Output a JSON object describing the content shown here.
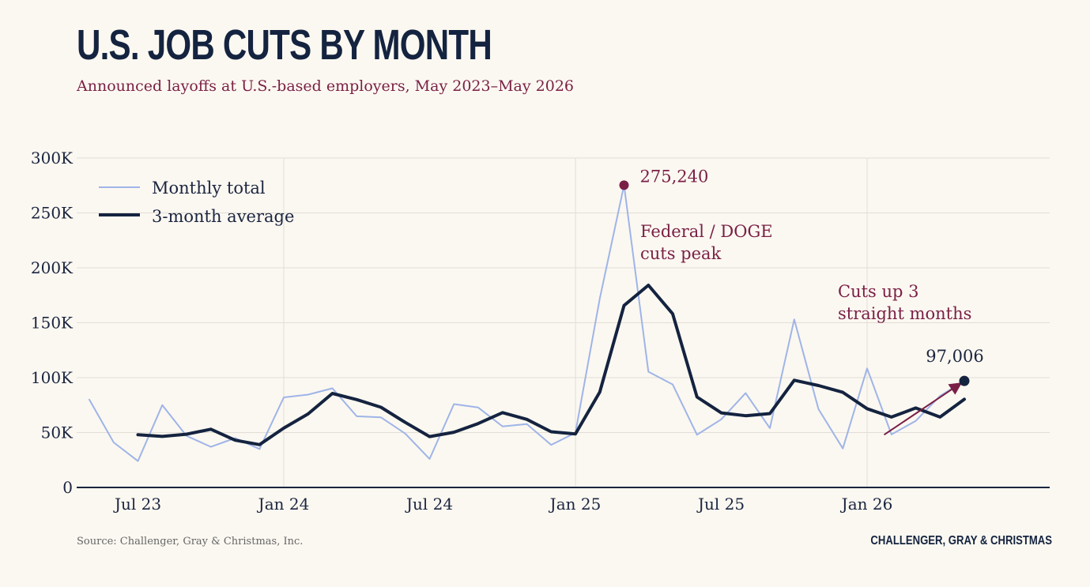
{
  "header": {
    "title": "U.S. JOB CUTS BY MONTH",
    "subtitle": "Announced layoffs at U.S.-based employers, May 2023–May 2026"
  },
  "footer": {
    "source": "Source: Challenger, Gray & Christmas, Inc.",
    "brand": "CHALLENGER, GRAY & CHRISTMAS"
  },
  "colors": {
    "monthly": "#9fb4e8",
    "average": "#14233f",
    "accent": "#7a1f45",
    "grid": "#e2ded6",
    "axis": "#1b2540"
  },
  "chart_data": {
    "type": "line",
    "ylim": [
      0,
      300000
    ],
    "yticks": [
      0,
      50000,
      100000,
      150000,
      200000,
      250000,
      300000
    ],
    "ytick_labels": [
      "0",
      "50K",
      "100K",
      "150K",
      "200K",
      "250K",
      "300K"
    ],
    "xticks": [
      "2023-07",
      "2024-01",
      "2024-07",
      "2025-01",
      "2025-07",
      "2026-01"
    ],
    "xtick_labels": [
      "Jul 23",
      "Jan 24",
      "Jul 24",
      "Jan 25",
      "Jul 25",
      "Jan 26"
    ],
    "vertical_gridlines_at": [
      "2024-01",
      "2025-01",
      "2026-01"
    ],
    "legend_placement": "top-left",
    "x": [
      "2023-05",
      "2023-06",
      "2023-07",
      "2023-08",
      "2023-09",
      "2023-10",
      "2023-11",
      "2023-12",
      "2024-01",
      "2024-02",
      "2024-03",
      "2024-04",
      "2024-05",
      "2024-06",
      "2024-07",
      "2024-08",
      "2024-09",
      "2024-10",
      "2024-11",
      "2024-12",
      "2025-01",
      "2025-02",
      "2025-03",
      "2025-04",
      "2025-05",
      "2025-06",
      "2025-07",
      "2025-08",
      "2025-09",
      "2025-10",
      "2025-11",
      "2025-12",
      "2026-01",
      "2026-02",
      "2026-03",
      "2026-04",
      "2026-05"
    ],
    "series": [
      {
        "name": "Monthly total",
        "values": [
          80000,
          41000,
          24000,
          75000,
          47000,
          37000,
          45000,
          35000,
          82000,
          84500,
          90300,
          64800,
          63800,
          49000,
          26000,
          75900,
          72800,
          55600,
          57700,
          38800,
          49800,
          172000,
          275240,
          105400,
          93800,
          48000,
          62000,
          85900,
          54000,
          153000,
          71300,
          35500,
          108400,
          48300,
          60600,
          83400,
          97006
        ]
      },
      {
        "name": "3-month average",
        "values": [
          null,
          null,
          48000,
          46500,
          48500,
          53000,
          43000,
          39000,
          54000,
          67000,
          85600,
          80000,
          73000,
          59200,
          46300,
          50300,
          58200,
          68100,
          62000,
          50700,
          48800,
          86900,
          165700,
          184200,
          158100,
          82400,
          67900,
          65300,
          67300,
          97600,
          92800,
          86600,
          71700,
          64100,
          72400,
          64100,
          80300
        ]
      }
    ],
    "annotations": [
      {
        "label": "275,240",
        "x": "2025-03",
        "y": 275240
      },
      {
        "label_lines": [
          "Federal / DOGE",
          "cuts peak"
        ]
      },
      {
        "label_lines": [
          "Cuts up 3",
          "straight months"
        ],
        "arrow_from": "2026-02",
        "arrow_to": "2026-05"
      },
      {
        "label": "97,006",
        "x": "2026-05",
        "y": 97006
      }
    ]
  }
}
